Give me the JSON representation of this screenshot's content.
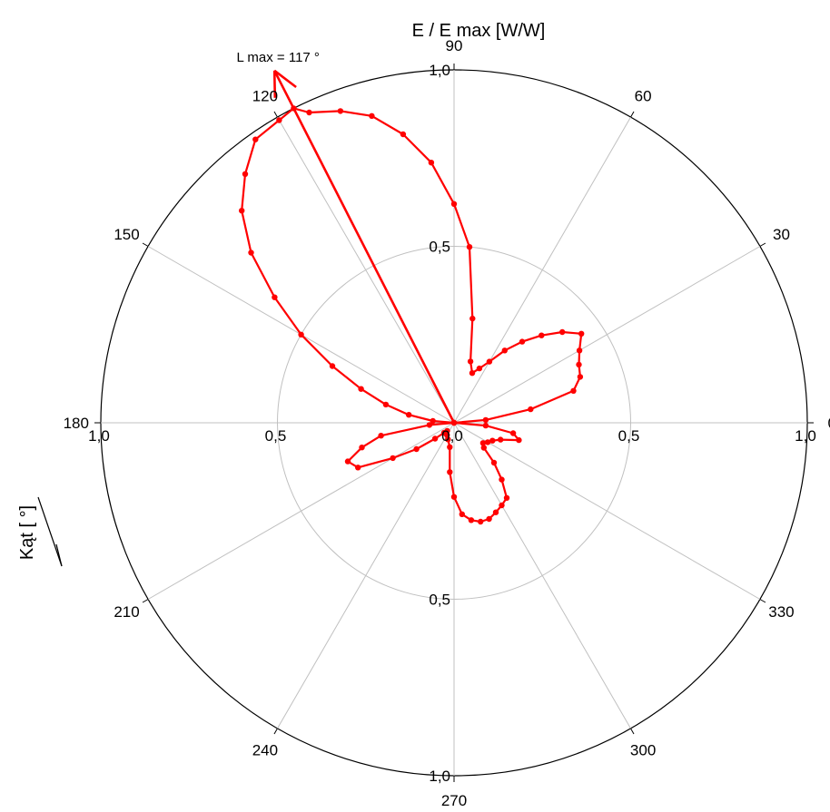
{
  "chart_data": {
    "type": "polar-line",
    "title": "E / E max [W/W]",
    "ylabel": "Kąt [ °]",
    "angle_unit": "degrees",
    "angle_direction": "counterclockwise",
    "zero_angle_position": "right",
    "angle_ticks": [
      0,
      30,
      60,
      90,
      120,
      150,
      180,
      210,
      240,
      270,
      300,
      330
    ],
    "angle_tick_labels": [
      "0",
      "30",
      "60",
      "90",
      "120",
      "150",
      "180",
      "210",
      "240",
      "270",
      "300",
      "330"
    ],
    "radial_range": [
      0,
      1.0
    ],
    "radial_ticks": [
      0,
      0.5,
      1.0
    ],
    "radial_tick_labels": [
      "0,0",
      "0,5",
      "1,0"
    ],
    "grid": true,
    "series_color": "#ff0000",
    "series": [
      {
        "points": [
          [
            0,
            0.0
          ],
          [
            5,
            0.09
          ],
          [
            10,
            0.22
          ],
          [
            15,
            0.35
          ],
          [
            20,
            0.38
          ],
          [
            25,
            0.39
          ],
          [
            30,
            0.41
          ],
          [
            35,
            0.44
          ],
          [
            40,
            0.4
          ],
          [
            45,
            0.35
          ],
          [
            50,
            0.3
          ],
          [
            55,
            0.25
          ],
          [
            60,
            0.2
          ],
          [
            65,
            0.17
          ],
          [
            70,
            0.15
          ],
          [
            75,
            0.18
          ],
          [
            80,
            0.3
          ],
          [
            85,
            0.5
          ],
          [
            90,
            0.62
          ],
          [
            95,
            0.74
          ],
          [
            100,
            0.83
          ],
          [
            105,
            0.9
          ],
          [
            110,
            0.94
          ],
          [
            115,
            0.97
          ],
          [
            117,
            1.0
          ],
          [
            120,
            0.99
          ],
          [
            125,
            0.98
          ],
          [
            130,
            0.92
          ],
          [
            135,
            0.85
          ],
          [
            140,
            0.75
          ],
          [
            145,
            0.62
          ],
          [
            150,
            0.5
          ],
          [
            155,
            0.38
          ],
          [
            160,
            0.28
          ],
          [
            165,
            0.2
          ],
          [
            170,
            0.13
          ],
          [
            175,
            0.06
          ],
          [
            180,
            0.0
          ],
          [
            185,
            0.07
          ],
          [
            190,
            0.21
          ],
          [
            195,
            0.27
          ],
          [
            200,
            0.32
          ],
          [
            205,
            0.3
          ],
          [
            210,
            0.2
          ],
          [
            215,
            0.13
          ],
          [
            220,
            0.07
          ],
          [
            225,
            0.04
          ],
          [
            230,
            0.03
          ],
          [
            240,
            0.04
          ],
          [
            250,
            0.05
          ],
          [
            260,
            0.07
          ],
          [
            265,
            0.14
          ],
          [
            270,
            0.21
          ],
          [
            275,
            0.26
          ],
          [
            280,
            0.28
          ],
          [
            285,
            0.29
          ],
          [
            290,
            0.29
          ],
          [
            295,
            0.28
          ],
          [
            300,
            0.27
          ],
          [
            305,
            0.26
          ],
          [
            310,
            0.21
          ],
          [
            315,
            0.16
          ],
          [
            320,
            0.11
          ],
          [
            325,
            0.1
          ],
          [
            330,
            0.11
          ],
          [
            335,
            0.12
          ],
          [
            340,
            0.14
          ],
          [
            345,
            0.19
          ],
          [
            350,
            0.17
          ],
          [
            355,
            0.09
          ],
          [
            360,
            0.0
          ]
        ]
      }
    ],
    "annotation": {
      "text": "L max = 117 °",
      "angle": 117,
      "arrow_length": 1.12
    }
  }
}
